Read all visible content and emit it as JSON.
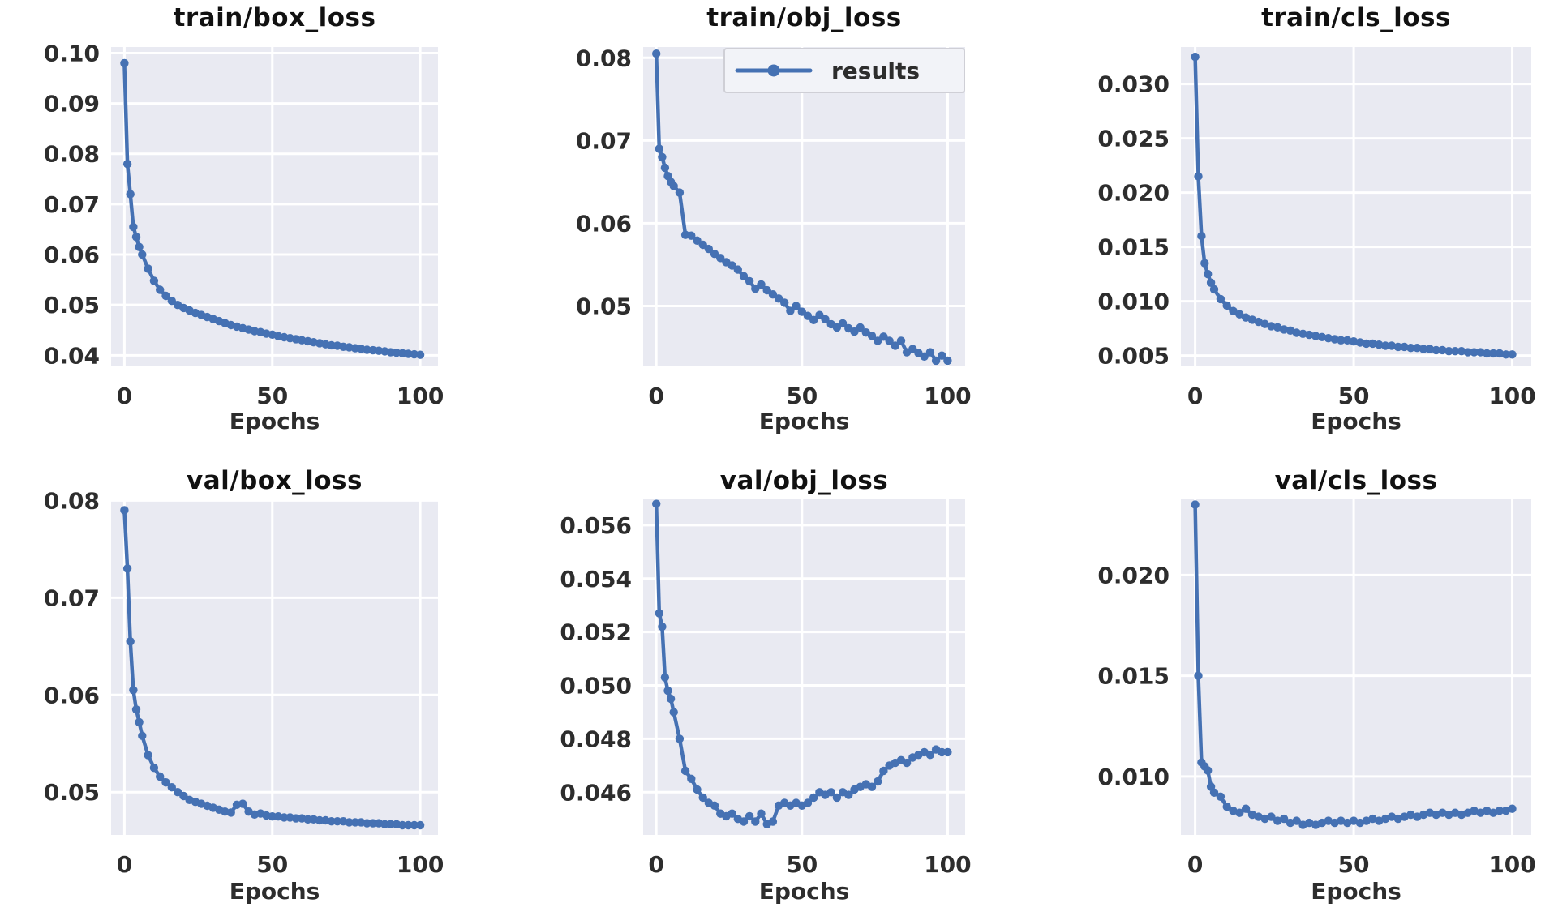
{
  "figure": {
    "background": "#ffffff",
    "line_color": "#4571b3",
    "plot_bg": "#e9eaf2",
    "grid_color": "#ffffff",
    "tick_color": "#2d2d2d",
    "title_color": "#111111",
    "xlabel": "Epochs",
    "xticks": [
      0,
      50,
      100
    ],
    "xtick_labels": [
      "0",
      "50",
      "100"
    ],
    "xlim": [
      -4.5,
      106
    ]
  },
  "legend": {
    "label": "results"
  },
  "chart_data": [
    {
      "type": "line",
      "title": "train/box_loss",
      "xlabel": "Epochs",
      "legend": false,
      "xlim": [
        -4.5,
        106
      ],
      "ylim": [
        0.0378,
        0.1012
      ],
      "xticks": [
        0,
        50,
        100
      ],
      "xtick_labels": [
        "0",
        "50",
        "100"
      ],
      "yticks": [
        0.04,
        0.05,
        0.06,
        0.07,
        0.08,
        0.09,
        0.1
      ],
      "ytick_labels": [
        "0.04",
        "0.05",
        "0.06",
        "0.07",
        "0.08",
        "0.09",
        "0.10"
      ],
      "series": [
        {
          "name": "results",
          "x": [
            0,
            1,
            2,
            3,
            4,
            5,
            6,
            8,
            10,
            12,
            14,
            16,
            18,
            20,
            22,
            24,
            26,
            28,
            30,
            32,
            34,
            36,
            38,
            40,
            42,
            44,
            46,
            48,
            50,
            52,
            54,
            56,
            58,
            60,
            62,
            64,
            66,
            68,
            70,
            72,
            74,
            76,
            78,
            80,
            82,
            84,
            86,
            88,
            90,
            92,
            94,
            96,
            98,
            100
          ],
          "y": [
            0.098,
            0.078,
            0.072,
            0.0655,
            0.0635,
            0.0615,
            0.06,
            0.0572,
            0.0548,
            0.053,
            0.0518,
            0.0508,
            0.05,
            0.0494,
            0.0489,
            0.0484,
            0.048,
            0.0476,
            0.0472,
            0.0468,
            0.0464,
            0.046,
            0.0457,
            0.0454,
            0.0451,
            0.0448,
            0.0446,
            0.0443,
            0.0441,
            0.0438,
            0.0436,
            0.0434,
            0.0432,
            0.043,
            0.0428,
            0.0426,
            0.0424,
            0.0422,
            0.042,
            0.0419,
            0.0417,
            0.0416,
            0.0414,
            0.0413,
            0.0411,
            0.041,
            0.0409,
            0.0408,
            0.0406,
            0.0405,
            0.0404,
            0.0403,
            0.0402,
            0.0401
          ]
        }
      ]
    },
    {
      "type": "line",
      "title": "train/obj_loss",
      "xlabel": "Epochs",
      "legend": true,
      "xlim": [
        -4.5,
        106
      ],
      "ylim": [
        0.0427,
        0.0813
      ],
      "xticks": [
        0,
        50,
        100
      ],
      "xtick_labels": [
        "0",
        "50",
        "100"
      ],
      "yticks": [
        0.05,
        0.06,
        0.07,
        0.08
      ],
      "ytick_labels": [
        "0.05",
        "0.06",
        "0.07",
        "0.08"
      ],
      "series": [
        {
          "name": "results",
          "x": [
            0,
            1,
            2,
            3,
            4,
            5,
            6,
            8,
            10,
            12,
            14,
            16,
            18,
            20,
            22,
            24,
            26,
            28,
            30,
            32,
            34,
            36,
            38,
            40,
            42,
            44,
            46,
            48,
            50,
            52,
            54,
            56,
            58,
            60,
            62,
            64,
            66,
            68,
            70,
            72,
            74,
            76,
            78,
            80,
            82,
            84,
            86,
            88,
            90,
            92,
            94,
            96,
            98,
            100
          ],
          "y": [
            0.0805,
            0.069,
            0.068,
            0.0667,
            0.0657,
            0.065,
            0.0645,
            0.0637,
            0.0586,
            0.0585,
            0.0579,
            0.0574,
            0.0569,
            0.0563,
            0.0558,
            0.0553,
            0.0549,
            0.0544,
            0.0536,
            0.053,
            0.0521,
            0.0526,
            0.0519,
            0.0514,
            0.0509,
            0.0504,
            0.0494,
            0.05,
            0.0493,
            0.0488,
            0.0483,
            0.0489,
            0.0484,
            0.0478,
            0.0474,
            0.0479,
            0.0473,
            0.0469,
            0.0474,
            0.0468,
            0.0464,
            0.0458,
            0.0463,
            0.0458,
            0.0452,
            0.0458,
            0.0444,
            0.0448,
            0.0443,
            0.0439,
            0.0444,
            0.0434,
            0.044,
            0.0434
          ]
        }
      ]
    },
    {
      "type": "line",
      "title": "train/cls_loss",
      "xlabel": "Epochs",
      "legend": false,
      "xlim": [
        -4.5,
        106
      ],
      "ylim": [
        0.004,
        0.0334
      ],
      "xticks": [
        0,
        50,
        100
      ],
      "xtick_labels": [
        "0",
        "50",
        "100"
      ],
      "yticks": [
        0.005,
        0.01,
        0.015,
        0.02,
        0.025,
        0.03
      ],
      "ytick_labels": [
        "0.005",
        "0.010",
        "0.015",
        "0.020",
        "0.025",
        "0.030"
      ],
      "series": [
        {
          "name": "results",
          "x": [
            0,
            1,
            2,
            3,
            4,
            5,
            6,
            8,
            10,
            12,
            14,
            16,
            18,
            20,
            22,
            24,
            26,
            28,
            30,
            32,
            34,
            36,
            38,
            40,
            42,
            44,
            46,
            48,
            50,
            52,
            54,
            56,
            58,
            60,
            62,
            64,
            66,
            68,
            70,
            72,
            74,
            76,
            78,
            80,
            82,
            84,
            86,
            88,
            90,
            92,
            94,
            96,
            98,
            100
          ],
          "y": [
            0.0325,
            0.0215,
            0.016,
            0.0135,
            0.0125,
            0.0117,
            0.0111,
            0.0102,
            0.0096,
            0.0091,
            0.0088,
            0.0085,
            0.0083,
            0.0081,
            0.0079,
            0.0077,
            0.0076,
            0.0074,
            0.0073,
            0.0071,
            0.007,
            0.0069,
            0.0068,
            0.0067,
            0.0066,
            0.0065,
            0.0064,
            0.0064,
            0.0063,
            0.0062,
            0.0061,
            0.0061,
            0.006,
            0.0059,
            0.0059,
            0.0058,
            0.0058,
            0.0057,
            0.0057,
            0.0056,
            0.0056,
            0.0055,
            0.0055,
            0.0054,
            0.0054,
            0.0054,
            0.0053,
            0.0053,
            0.0053,
            0.0052,
            0.0052,
            0.0052,
            0.0051,
            0.0051
          ]
        }
      ]
    },
    {
      "type": "line",
      "title": "val/box_loss",
      "xlabel": "Epochs",
      "legend": false,
      "xlim": [
        -4.5,
        106
      ],
      "ylim": [
        0.0456,
        0.0802
      ],
      "xticks": [
        0,
        50,
        100
      ],
      "xtick_labels": [
        "0",
        "50",
        "100"
      ],
      "yticks": [
        0.05,
        0.06,
        0.07,
        0.08
      ],
      "ytick_labels": [
        "0.05",
        "0.06",
        "0.07",
        "0.08"
      ],
      "series": [
        {
          "name": "results",
          "x": [
            0,
            1,
            2,
            3,
            4,
            5,
            6,
            8,
            10,
            12,
            14,
            16,
            18,
            20,
            22,
            24,
            26,
            28,
            30,
            32,
            34,
            36,
            38,
            40,
            42,
            44,
            46,
            48,
            50,
            52,
            54,
            56,
            58,
            60,
            62,
            64,
            66,
            68,
            70,
            72,
            74,
            76,
            78,
            80,
            82,
            84,
            86,
            88,
            90,
            92,
            94,
            96,
            98,
            100
          ],
          "y": [
            0.079,
            0.073,
            0.0655,
            0.0605,
            0.0585,
            0.0572,
            0.0558,
            0.0538,
            0.0525,
            0.0516,
            0.051,
            0.0505,
            0.05,
            0.0496,
            0.0492,
            0.049,
            0.0488,
            0.0486,
            0.0484,
            0.0482,
            0.048,
            0.0479,
            0.0487,
            0.0488,
            0.048,
            0.0477,
            0.0478,
            0.0476,
            0.0475,
            0.0475,
            0.0474,
            0.0474,
            0.0473,
            0.0473,
            0.0472,
            0.0472,
            0.0471,
            0.0471,
            0.047,
            0.047,
            0.047,
            0.0469,
            0.0469,
            0.0469,
            0.0468,
            0.0468,
            0.0468,
            0.0467,
            0.0467,
            0.0467,
            0.0466,
            0.0466,
            0.0466,
            0.0466
          ]
        }
      ]
    },
    {
      "type": "line",
      "title": "val/obj_loss",
      "xlabel": "Epochs",
      "legend": false,
      "xlim": [
        -4.5,
        106
      ],
      "ylim": [
        0.0444,
        0.057
      ],
      "xticks": [
        0,
        50,
        100
      ],
      "xtick_labels": [
        "0",
        "50",
        "100"
      ],
      "yticks": [
        0.046,
        0.048,
        0.05,
        0.052,
        0.054,
        0.056
      ],
      "ytick_labels": [
        "0.046",
        "0.048",
        "0.050",
        "0.052",
        "0.054",
        "0.056"
      ],
      "series": [
        {
          "name": "results",
          "x": [
            0,
            1,
            2,
            3,
            4,
            5,
            6,
            8,
            10,
            12,
            14,
            16,
            18,
            20,
            22,
            24,
            26,
            28,
            30,
            32,
            34,
            36,
            38,
            40,
            42,
            44,
            46,
            48,
            50,
            52,
            54,
            56,
            58,
            60,
            62,
            64,
            66,
            68,
            70,
            72,
            74,
            76,
            78,
            80,
            82,
            84,
            86,
            88,
            90,
            92,
            94,
            96,
            98,
            100
          ],
          "y": [
            0.0568,
            0.0527,
            0.0522,
            0.0503,
            0.0498,
            0.0495,
            0.049,
            0.048,
            0.0468,
            0.0465,
            0.0461,
            0.0458,
            0.0456,
            0.0455,
            0.0452,
            0.0451,
            0.0452,
            0.045,
            0.0449,
            0.0451,
            0.0449,
            0.0452,
            0.0448,
            0.0449,
            0.0455,
            0.0456,
            0.0455,
            0.0456,
            0.0455,
            0.0456,
            0.0458,
            0.046,
            0.0459,
            0.046,
            0.0458,
            0.046,
            0.0459,
            0.0461,
            0.0462,
            0.0463,
            0.0462,
            0.0464,
            0.0468,
            0.047,
            0.0471,
            0.0472,
            0.0471,
            0.0473,
            0.0474,
            0.0475,
            0.0474,
            0.0476,
            0.0475,
            0.0475
          ]
        }
      ]
    },
    {
      "type": "line",
      "title": "val/cls_loss",
      "xlabel": "Epochs",
      "legend": false,
      "xlim": [
        -4.5,
        106
      ],
      "ylim": [
        0.0071,
        0.0238
      ],
      "xticks": [
        0,
        50,
        100
      ],
      "xtick_labels": [
        "0",
        "50",
        "100"
      ],
      "yticks": [
        0.01,
        0.015,
        0.02
      ],
      "ytick_labels": [
        "0.010",
        "0.015",
        "0.020"
      ],
      "series": [
        {
          "name": "results",
          "x": [
            0,
            1,
            2,
            3,
            4,
            5,
            6,
            8,
            10,
            12,
            14,
            16,
            18,
            20,
            22,
            24,
            26,
            28,
            30,
            32,
            34,
            36,
            38,
            40,
            42,
            44,
            46,
            48,
            50,
            52,
            54,
            56,
            58,
            60,
            62,
            64,
            66,
            68,
            70,
            72,
            74,
            76,
            78,
            80,
            82,
            84,
            86,
            88,
            90,
            92,
            94,
            96,
            98,
            100
          ],
          "y": [
            0.0235,
            0.015,
            0.0107,
            0.0105,
            0.0103,
            0.0095,
            0.0092,
            0.009,
            0.0085,
            0.0083,
            0.0082,
            0.0084,
            0.0081,
            0.008,
            0.0079,
            0.008,
            0.0078,
            0.0079,
            0.0077,
            0.0078,
            0.0076,
            0.0077,
            0.0076,
            0.0077,
            0.0078,
            0.0077,
            0.0078,
            0.0077,
            0.0078,
            0.0077,
            0.0078,
            0.0079,
            0.0078,
            0.0079,
            0.008,
            0.0079,
            0.008,
            0.0081,
            0.008,
            0.0081,
            0.0082,
            0.0081,
            0.0082,
            0.0081,
            0.0082,
            0.0081,
            0.0082,
            0.0083,
            0.0082,
            0.0083,
            0.0082,
            0.0083,
            0.0083,
            0.0084
          ]
        }
      ]
    }
  ]
}
